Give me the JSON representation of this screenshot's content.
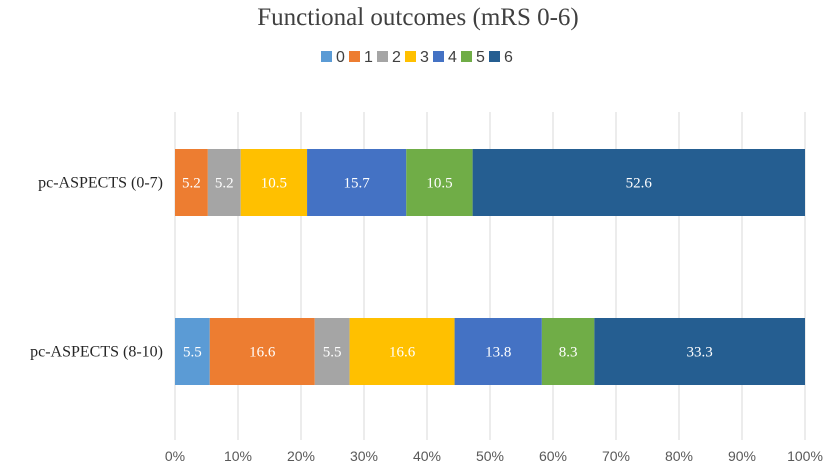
{
  "chart_data": {
    "type": "bar",
    "orientation": "horizontal",
    "stacked": "percent",
    "title": "Functional outcomes (mRS 0-6)",
    "xlabel": "",
    "ylabel": "",
    "xlim": [
      0,
      100
    ],
    "tick_labels": [
      "0%",
      "10%",
      "20%",
      "30%",
      "40%",
      "50%",
      "60%",
      "70%",
      "80%",
      "90%",
      "100%"
    ],
    "grid": true,
    "legend_position": "top",
    "categories": [
      "pc-ASPECTS (0-7)",
      "pc-ASPECTS (8-10)"
    ],
    "series": [
      {
        "name": "0",
        "color": "#5B9BD5",
        "values": [
          0,
          5.5
        ],
        "labels": [
          "0",
          "5.5"
        ]
      },
      {
        "name": "1",
        "color": "#ED7D31",
        "values": [
          5.2,
          16.6
        ],
        "labels": [
          "5.2",
          "16.6"
        ]
      },
      {
        "name": "2",
        "color": "#A5A5A5",
        "values": [
          5.2,
          5.5
        ],
        "labels": [
          "5.2",
          "5.5"
        ]
      },
      {
        "name": "3",
        "color": "#FFC000",
        "values": [
          10.5,
          16.6
        ],
        "labels": [
          "10.5",
          "16.6"
        ]
      },
      {
        "name": "4",
        "color": "#4472C4",
        "values": [
          15.7,
          13.8
        ],
        "labels": [
          "15.7",
          "13.8"
        ]
      },
      {
        "name": "5",
        "color": "#70AD47",
        "values": [
          10.5,
          8.3
        ],
        "labels": [
          "10.5",
          "8.3"
        ]
      },
      {
        "name": "6",
        "color": "#255E91",
        "values": [
          52.6,
          33.3
        ],
        "labels": [
          "52.6",
          "33.3"
        ]
      }
    ]
  }
}
